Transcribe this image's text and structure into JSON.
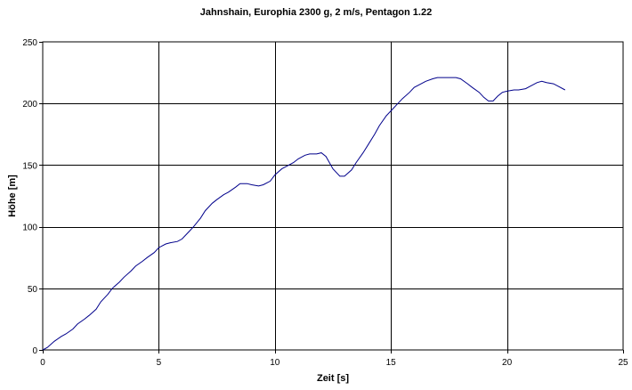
{
  "chart_data": {
    "type": "line",
    "title": "Jahnshain, Europhia 2300 g, 2 m/s, Pentagon 1.22",
    "xlabel": "Zeit [s]",
    "ylabel": "Höhe [m]",
    "xlim": [
      0,
      25
    ],
    "ylim": [
      0,
      250
    ],
    "x_ticks": [
      0,
      5,
      10,
      15,
      20,
      25
    ],
    "y_ticks": [
      0,
      50,
      100,
      150,
      200,
      250
    ],
    "grid": true,
    "legend": false,
    "line_color": "#00008b",
    "series": [
      {
        "x": [
          0,
          0.2,
          0.5,
          0.8,
          1,
          1.3,
          1.5,
          1.8,
          2,
          2.3,
          2.5,
          2.8,
          3,
          3.3,
          3.5,
          3.8,
          4,
          4.3,
          4.5,
          4.8,
          5,
          5.3,
          5.5,
          5.8,
          6,
          6.3,
          6.5,
          6.8,
          7,
          7.3,
          7.5,
          7.8,
          8,
          8.3,
          8.5,
          8.8,
          9,
          9.3,
          9.5,
          9.8,
          10,
          10.3,
          10.5,
          10.8,
          11,
          11.3,
          11.5,
          11.8,
          12,
          12.2,
          12.5,
          12.8,
          13,
          13.3,
          13.5,
          13.8,
          14,
          14.3,
          14.5,
          14.8,
          15,
          15.3,
          15.5,
          15.8,
          16,
          16.3,
          16.5,
          16.8,
          17,
          17.3,
          17.5,
          17.8,
          18,
          18.3,
          18.5,
          18.8,
          19,
          19.2,
          19.4,
          19.6,
          19.8,
          20,
          20.3,
          20.5,
          20.8,
          21,
          21.3,
          21.5,
          21.7,
          22,
          22.2,
          22.5
        ],
        "y": [
          0,
          2,
          7,
          11,
          13,
          17,
          21,
          25,
          28,
          33,
          39,
          45,
          50,
          55,
          59,
          64,
          68,
          72,
          75,
          79,
          83,
          86,
          87,
          88,
          90,
          96,
          100,
          107,
          113,
          119,
          122,
          126,
          128,
          132,
          135,
          135,
          134,
          133,
          134,
          137,
          142,
          147,
          149,
          152,
          155,
          158,
          159,
          159,
          160,
          157,
          147,
          141,
          141,
          146,
          152,
          160,
          166,
          175,
          182,
          190,
          194,
          200,
          204,
          209,
          213,
          216,
          218,
          220,
          221,
          221,
          221,
          221,
          220,
          216,
          213,
          209,
          205,
          202,
          202,
          206,
          209,
          210,
          211,
          211,
          212,
          214,
          217,
          218,
          217,
          216,
          214,
          211
        ]
      }
    ]
  }
}
